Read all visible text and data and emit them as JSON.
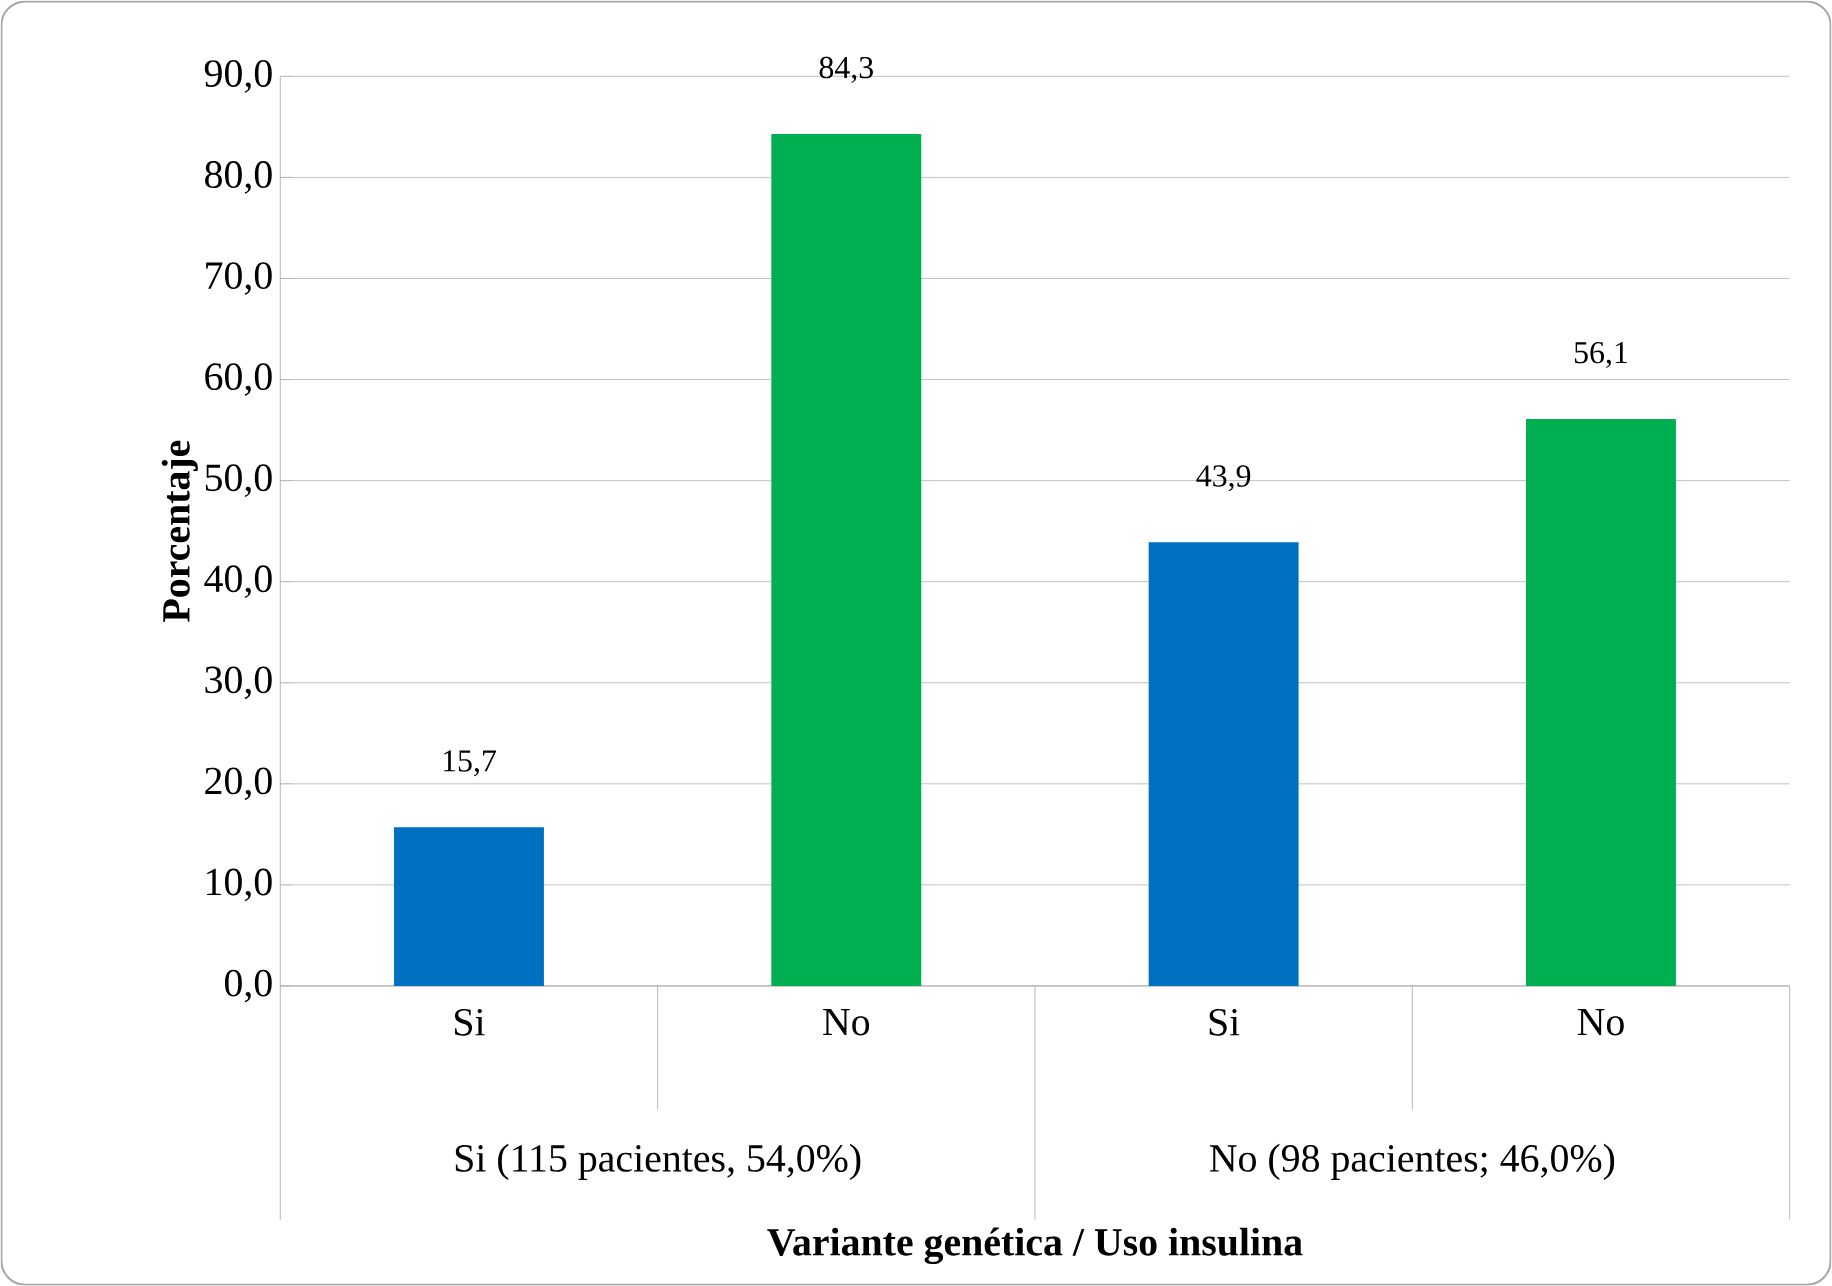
{
  "chart_data": {
    "type": "bar",
    "categories": [
      "Si",
      "No",
      "Si",
      "No"
    ],
    "values": [
      15.7,
      84.3,
      43.9,
      56.1
    ],
    "colors": [
      "#0070c0",
      "#00b050",
      "#0070c0",
      "#00b050"
    ],
    "value_labels": [
      "15,7",
      "84,3",
      "43,9",
      "56,1"
    ],
    "ylabel": "Porcentaje",
    "xlabel": "Variante genética / Uso insulina",
    "annotations": [
      "Si (115 pacientes, 54,0%)",
      "No (98 pacientes; 46,0%)"
    ],
    "ylim": [
      0,
      90
    ],
    "yticks": [
      {
        "value": 0,
        "label": "0,0"
      },
      {
        "value": 10,
        "label": "10,0"
      },
      {
        "value": 20,
        "label": "20,0"
      },
      {
        "value": 30,
        "label": "30,0"
      },
      {
        "value": 40,
        "label": "40,0"
      },
      {
        "value": 50,
        "label": "50,0"
      },
      {
        "value": 60,
        "label": "60,0"
      },
      {
        "value": 70,
        "label": "70,0"
      },
      {
        "value": 80,
        "label": "80,0"
      },
      {
        "value": 90,
        "label": "90,0"
      }
    ],
    "grid": "y"
  }
}
